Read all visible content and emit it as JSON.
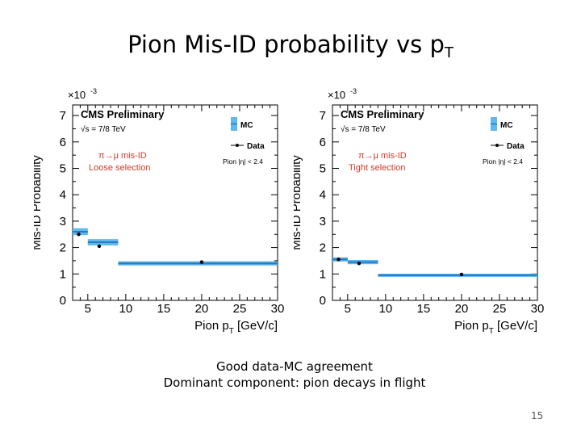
{
  "slide": {
    "title_main": "Pion Mis-ID probability vs p",
    "title_sub": "T",
    "caption_lines": [
      "Good data-MC agreement",
      "Dominant component: pion decays in flight"
    ],
    "page_number": "15"
  },
  "chart_data": [
    {
      "type": "step",
      "ylabel": "Mis-ID Probability",
      "xlabel_main": "Pion p",
      "xlabel_sub": "T",
      "xlabel_unit": " [GeV/c]",
      "y_multiplier": "×10",
      "y_multiplier_exp": "-3",
      "xlim": [
        3,
        30
      ],
      "ylim": [
        0,
        7.4
      ],
      "xticks": [
        5,
        10,
        15,
        20,
        25,
        30
      ],
      "yticks": [
        0,
        1,
        2,
        3,
        4,
        5,
        6,
        7
      ],
      "experiment": "CMS Preliminary",
      "energy": "√s = 7/8 TeV",
      "selection_title": "π→μ mis-ID",
      "selection_label": "Loose selection",
      "eta_cut": "Pion |η| < 2.4",
      "legend": {
        "mc": "MC",
        "data": "Data"
      },
      "series": [
        {
          "name": "MC",
          "bins": [
            {
              "x0": 3,
              "x1": 5,
              "y": 2.6,
              "err": 0.13
            },
            {
              "x0": 5,
              "x1": 9,
              "y": 2.2,
              "err": 0.12
            },
            {
              "x0": 9,
              "x1": 30,
              "y": 1.4,
              "err": 0.08
            }
          ]
        },
        {
          "name": "Data",
          "points": [
            {
              "x": 3.8,
              "y": 2.5,
              "err": 0.05
            },
            {
              "x": 6.5,
              "y": 2.05,
              "err": 0.04
            },
            {
              "x": 20,
              "y": 1.45,
              "err": 0.05
            }
          ]
        }
      ]
    },
    {
      "type": "step",
      "ylabel": "Mis-ID Probability",
      "xlabel_main": "Pion p",
      "xlabel_sub": "T",
      "xlabel_unit": " [GeV/c]",
      "y_multiplier": "×10",
      "y_multiplier_exp": "-3",
      "xlim": [
        3,
        30
      ],
      "ylim": [
        0,
        7.4
      ],
      "xticks": [
        5,
        10,
        15,
        20,
        25,
        30
      ],
      "yticks": [
        0,
        1,
        2,
        3,
        4,
        5,
        6,
        7
      ],
      "experiment": "CMS Preliminary",
      "energy": "√s = 7/8 TeV",
      "selection_title": "π→μ mis-ID",
      "selection_label": "Tight selection",
      "eta_cut": "Pion |η| < 2.4",
      "legend": {
        "mc": "MC",
        "data": "Data"
      },
      "series": [
        {
          "name": "MC",
          "bins": [
            {
              "x0": 3,
              "x1": 5,
              "y": 1.55,
              "err": 0.08
            },
            {
              "x0": 5,
              "x1": 9,
              "y": 1.45,
              "err": 0.08
            },
            {
              "x0": 9,
              "x1": 30,
              "y": 0.95,
              "err": 0.06
            }
          ]
        },
        {
          "name": "Data",
          "points": [
            {
              "x": 3.8,
              "y": 1.55,
              "err": 0.04
            },
            {
              "x": 6.5,
              "y": 1.4,
              "err": 0.03
            },
            {
              "x": 20,
              "y": 0.98,
              "err": 0.05
            }
          ]
        }
      ]
    }
  ]
}
